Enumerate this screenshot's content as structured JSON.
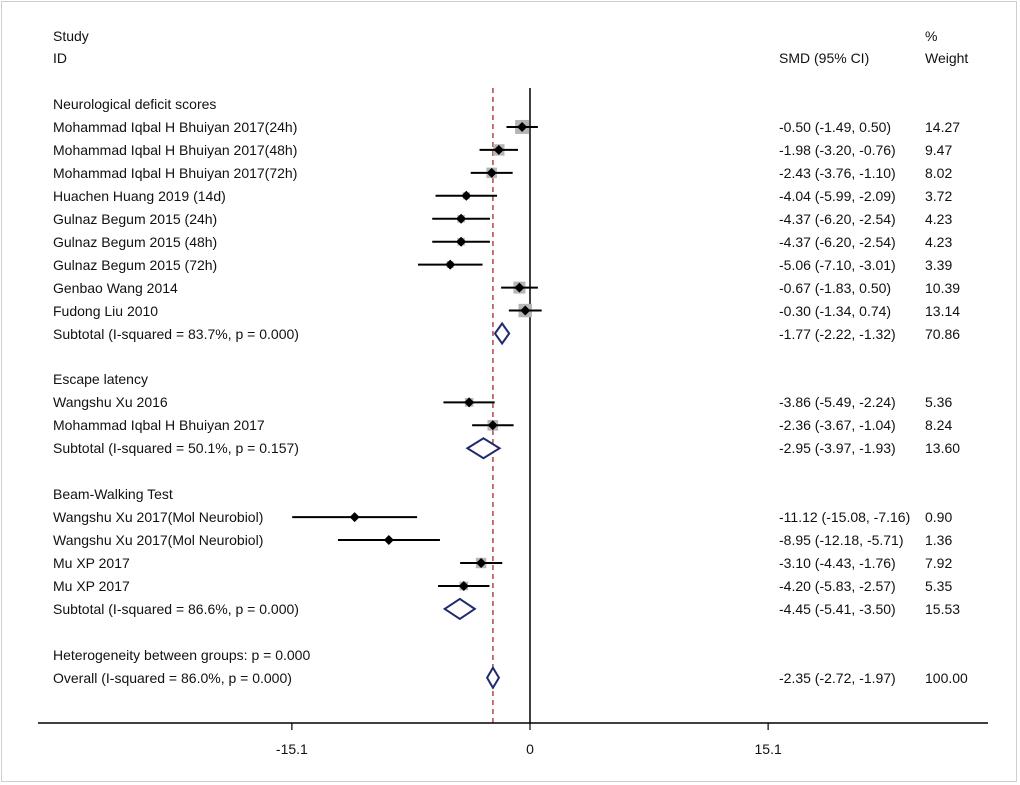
{
  "header": {
    "study": "Study",
    "id": "ID",
    "smd": "SMD (95% CI)",
    "pct": "%",
    "weight": "Weight"
  },
  "colors": {
    "point": "#000000",
    "weight_box": "#b5b5b5",
    "diamond": "#1f2a6e",
    "overall_line": "#a52a2a",
    "null_line": "#000000"
  },
  "chart_data": {
    "type": "forest",
    "x_axis": {
      "ticks": [
        -15.1,
        0,
        15.1
      ],
      "tick_labels": [
        "-15.1",
        "0",
        "15.1"
      ]
    },
    "overall_estimate": -2.35,
    "rows": [
      {
        "kind": "header",
        "label": "Neurological deficit scores"
      },
      {
        "kind": "study",
        "label": "Mohammad Iqbal H Bhuiyan 2017(24h)",
        "est": -0.5,
        "lo": -1.49,
        "hi": 0.5,
        "ci_text": "-0.50 (-1.49, 0.50)",
        "weight": "14.27"
      },
      {
        "kind": "study",
        "label": "Mohammad Iqbal H Bhuiyan 2017(48h)",
        "est": -1.98,
        "lo": -3.2,
        "hi": -0.76,
        "ci_text": "-1.98 (-3.20, -0.76)",
        "weight": "9.47"
      },
      {
        "kind": "study",
        "label": "Mohammad Iqbal H Bhuiyan 2017(72h)",
        "est": -2.43,
        "lo": -3.76,
        "hi": -1.1,
        "ci_text": "-2.43 (-3.76, -1.10)",
        "weight": "8.02"
      },
      {
        "kind": "study",
        "label": "Huachen Huang 2019 (14d)",
        "est": -4.04,
        "lo": -5.99,
        "hi": -2.09,
        "ci_text": "-4.04 (-5.99, -2.09)",
        "weight": "3.72"
      },
      {
        "kind": "study",
        "label": "Gulnaz Begum 2015 (24h)",
        "est": -4.37,
        "lo": -6.2,
        "hi": -2.54,
        "ci_text": "-4.37 (-6.20, -2.54)",
        "weight": "4.23"
      },
      {
        "kind": "study",
        "label": "Gulnaz Begum 2015 (48h)",
        "est": -4.37,
        "lo": -6.2,
        "hi": -2.54,
        "ci_text": "-4.37 (-6.20, -2.54)",
        "weight": "4.23"
      },
      {
        "kind": "study",
        "label": "Gulnaz Begum 2015 (72h)",
        "est": -5.06,
        "lo": -7.1,
        "hi": -3.01,
        "ci_text": "-5.06 (-7.10, -3.01)",
        "weight": "3.39"
      },
      {
        "kind": "study",
        "label": "Genbao Wang 2014",
        "est": -0.67,
        "lo": -1.83,
        "hi": 0.5,
        "ci_text": "-0.67 (-1.83, 0.50)",
        "weight": "10.39"
      },
      {
        "kind": "study",
        "label": "Fudong Liu 2010",
        "est": -0.3,
        "lo": -1.34,
        "hi": 0.74,
        "ci_text": "-0.30 (-1.34, 0.74)",
        "weight": "13.14"
      },
      {
        "kind": "subtotal",
        "label": "Subtotal  (I-squared = 83.7%, p = 0.000)",
        "est": -1.77,
        "lo": -2.22,
        "hi": -1.32,
        "ci_text": "-1.77 (-2.22, -1.32)",
        "weight": "70.86"
      },
      {
        "kind": "blank"
      },
      {
        "kind": "header",
        "label": "Escape latency"
      },
      {
        "kind": "study",
        "label": "Wangshu Xu 2016",
        "est": -3.86,
        "lo": -5.49,
        "hi": -2.24,
        "ci_text": "-3.86 (-5.49, -2.24)",
        "weight": "5.36"
      },
      {
        "kind": "study",
        "label": "Mohammad Iqbal H Bhuiyan 2017",
        "est": -2.36,
        "lo": -3.67,
        "hi": -1.04,
        "ci_text": "-2.36 (-3.67, -1.04)",
        "weight": "8.24"
      },
      {
        "kind": "subtotal",
        "label": "Subtotal  (I-squared = 50.1%, p = 0.157)",
        "est": -2.95,
        "lo": -3.97,
        "hi": -1.93,
        "ci_text": "-2.95 (-3.97, -1.93)",
        "weight": "13.60"
      },
      {
        "kind": "blank"
      },
      {
        "kind": "header",
        "label": "Beam-Walking Test"
      },
      {
        "kind": "study",
        "label": "Wangshu Xu 2017(Mol Neurobiol)",
        "est": -11.12,
        "lo": -15.08,
        "hi": -7.16,
        "ci_text": "-11.12 (-15.08, -7.16)",
        "weight": "0.90"
      },
      {
        "kind": "study",
        "label": "Wangshu Xu 2017(Mol Neurobiol)",
        "est": -8.95,
        "lo": -12.18,
        "hi": -5.71,
        "ci_text": "-8.95 (-12.18, -5.71)",
        "weight": "1.36"
      },
      {
        "kind": "study",
        "label": "Mu XP 2017",
        "est": -3.1,
        "lo": -4.43,
        "hi": -1.76,
        "ci_text": "-3.10 (-4.43, -1.76)",
        "weight": "7.92"
      },
      {
        "kind": "study",
        "label": "Mu XP 2017",
        "est": -4.2,
        "lo": -5.83,
        "hi": -2.57,
        "ci_text": "-4.20 (-5.83, -2.57)",
        "weight": "5.35"
      },
      {
        "kind": "subtotal",
        "label": "Subtotal  (I-squared = 86.6%, p = 0.000)",
        "est": -4.45,
        "lo": -5.41,
        "hi": -3.5,
        "ci_text": "-4.45 (-5.41, -3.50)",
        "weight": "15.53"
      },
      {
        "kind": "blank"
      },
      {
        "kind": "header",
        "label": "Heterogeneity between groups: p = 0.000"
      },
      {
        "kind": "overall",
        "label": "Overall  (I-squared = 86.0%, p = 0.000)",
        "est": -2.35,
        "lo": -2.72,
        "hi": -1.97,
        "ci_text": "-2.35 (-2.72, -1.97)",
        "weight": "100.00"
      }
    ]
  }
}
